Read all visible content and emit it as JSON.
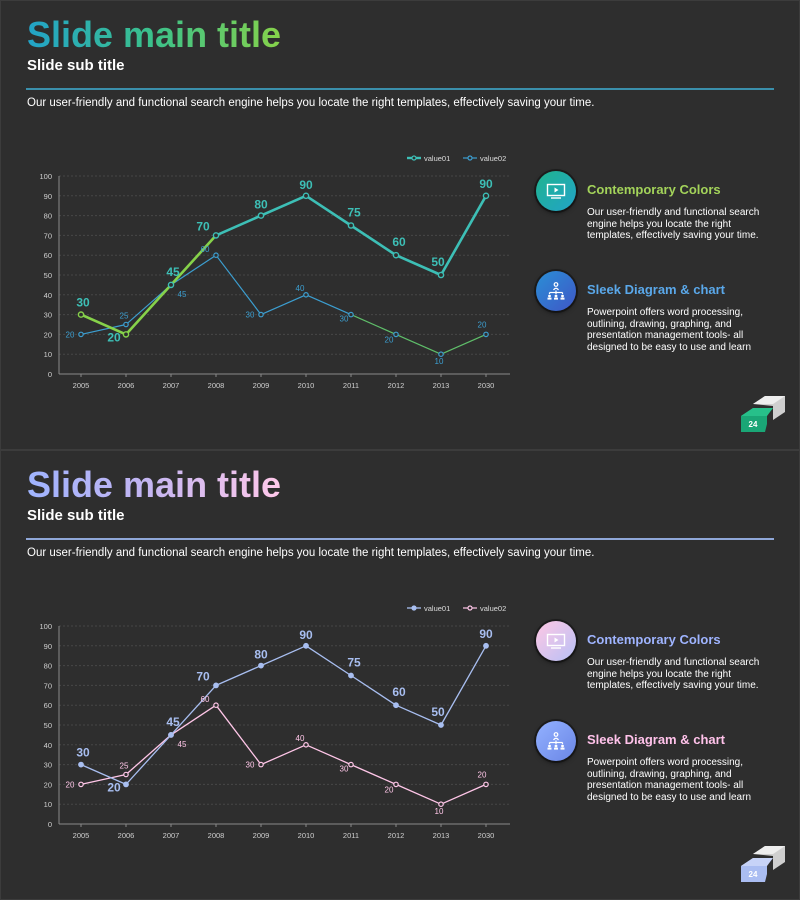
{
  "slides": [
    {
      "title": "Slide main title",
      "subtitle": "Slide sub title",
      "intro": "Our user-friendly and functional search engine helps you locate the right templates, effectively saving your time.",
      "features": [
        {
          "heading": "Contemporary Colors",
          "body": "Our user-friendly and functional search engine helps you locate the right templates, effectively saving your time.",
          "icon": "monitor-play-icon"
        },
        {
          "heading": "Sleek Diagram & chart",
          "body": "Powerpoint offers word processing, outlining, drawing, graphing, and presentation management tools- all designed to be easy to use and learn",
          "icon": "org-chart-icon"
        }
      ],
      "page_number": "24",
      "colors": {
        "series1": "#3dbfb6",
        "series1_early": "#86d24a",
        "series2": "#3c9ed0",
        "series2_late": "#5fbf6a",
        "label1": "#3dbfb6",
        "label2": "#3c9ed0"
      }
    },
    {
      "title": "Slide main title",
      "subtitle": "Slide sub title",
      "intro": "Our user-friendly and functional search engine helps you locate the right templates, effectively saving your time.",
      "features": [
        {
          "heading": "Contemporary Colors",
          "body": "Our user-friendly and functional search engine helps you locate the right templates, effectively saving your time.",
          "icon": "monitor-play-icon"
        },
        {
          "heading": "Sleek Diagram & chart",
          "body": "Powerpoint offers word processing, outlining, drawing, graphing, and presentation management tools- all designed to be easy to use and learn",
          "icon": "org-chart-icon"
        }
      ],
      "page_number": "24",
      "colors": {
        "series1": "#a8bef0",
        "series1_early": "#a8bef0",
        "series2": "#ffc6e8",
        "series2_late": "#ffc6e8",
        "label1": "#a8bef0",
        "label2": "#ffc6e8"
      }
    }
  ],
  "chart_data": [
    {
      "type": "line",
      "categories": [
        "2005",
        "2006",
        "2007",
        "2008",
        "2009",
        "2010",
        "2011",
        "2012",
        "2013",
        "2030"
      ],
      "series": [
        {
          "name": "value01",
          "values": [
            30,
            20,
            45,
            70,
            80,
            90,
            75,
            60,
            50,
            90
          ]
        },
        {
          "name": "value02",
          "values": [
            20,
            25,
            45,
            60,
            30,
            40,
            30,
            20,
            10,
            20
          ]
        }
      ],
      "yticks": [
        0,
        10,
        20,
        30,
        40,
        50,
        60,
        70,
        80,
        90,
        100
      ],
      "ylim": [
        0,
        100
      ],
      "legend": "top-right",
      "grid": true
    },
    {
      "type": "line",
      "categories": [
        "2005",
        "2006",
        "2007",
        "2008",
        "2009",
        "2010",
        "2011",
        "2012",
        "2013",
        "2030"
      ],
      "series": [
        {
          "name": "value01",
          "values": [
            30,
            20,
            45,
            70,
            80,
            90,
            75,
            60,
            50,
            90
          ]
        },
        {
          "name": "value02",
          "values": [
            20,
            25,
            45,
            60,
            30,
            40,
            30,
            20,
            10,
            20
          ]
        }
      ],
      "yticks": [
        0,
        10,
        20,
        30,
        40,
        50,
        60,
        70,
        80,
        90,
        100
      ],
      "ylim": [
        0,
        100
      ],
      "legend": "top-right",
      "grid": true
    }
  ]
}
